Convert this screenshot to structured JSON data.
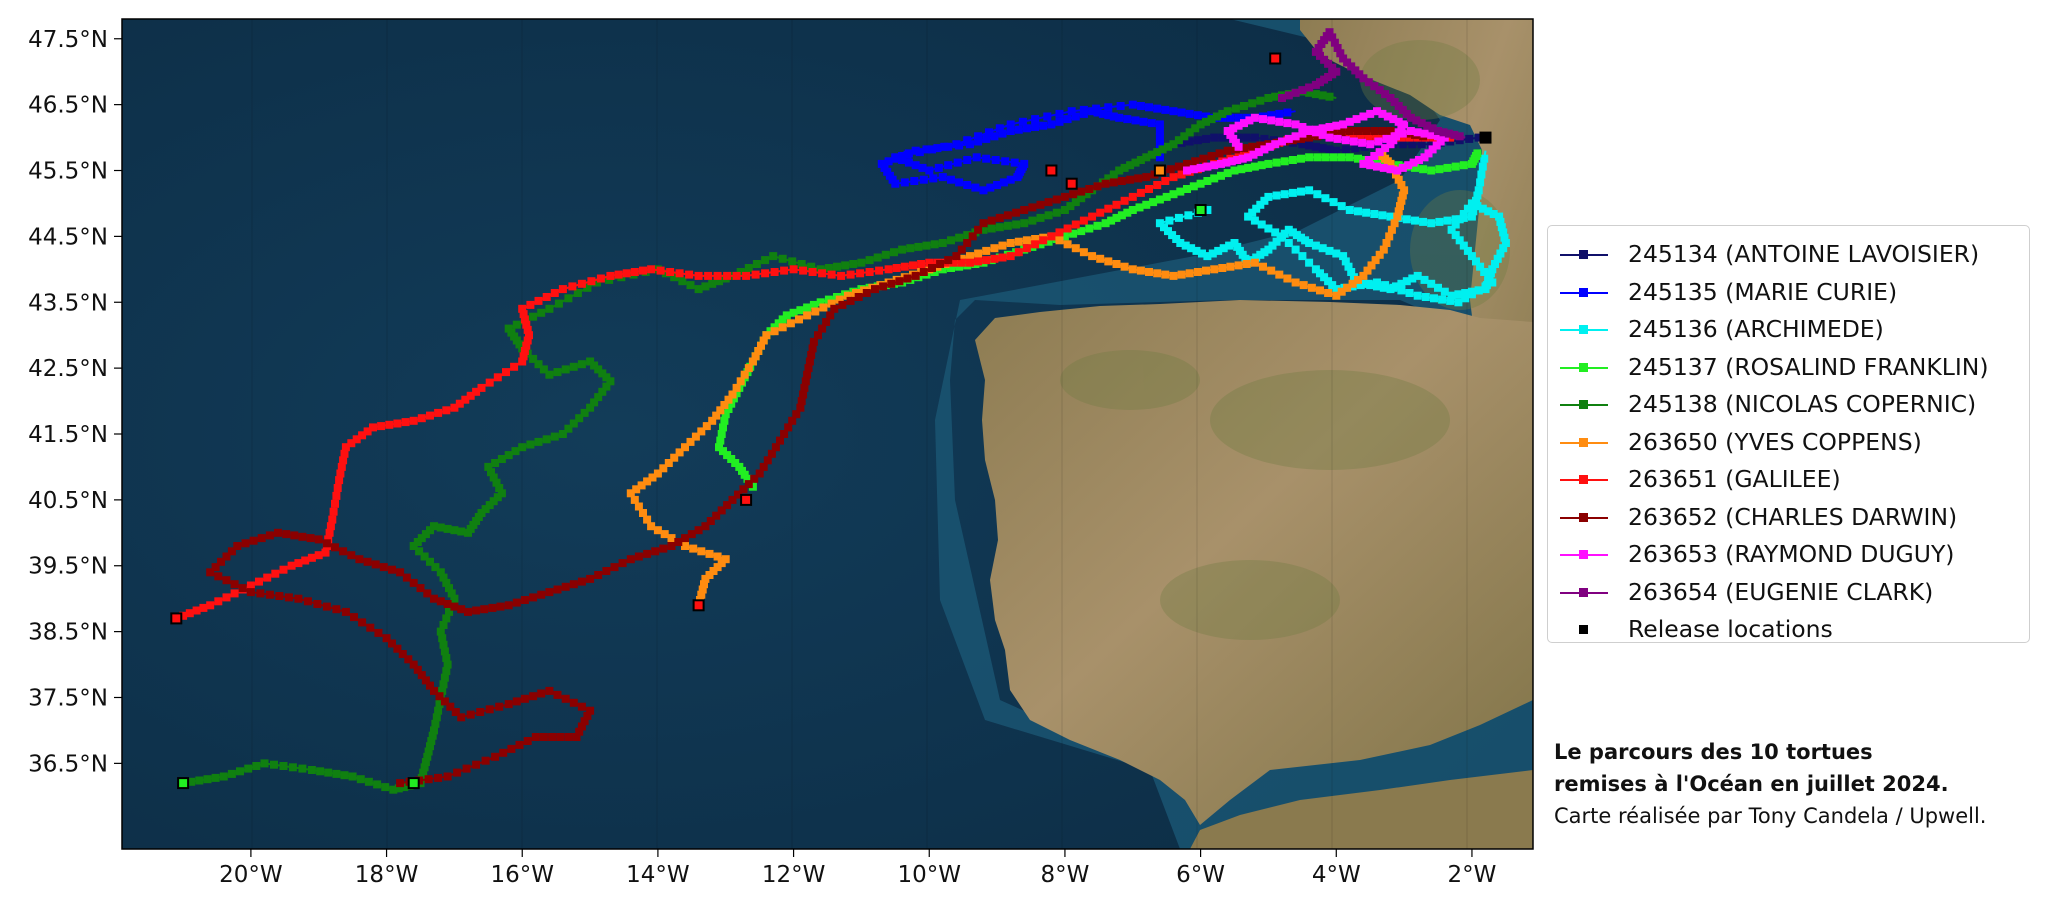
{
  "map": {
    "lon_range": [
      -21.9,
      -1.1
    ],
    "lat_range": [
      35.2,
      47.8
    ],
    "x_ticks": [
      "20°W",
      "18°W",
      "16°W",
      "14°W",
      "12°W",
      "10°W",
      "8°W",
      "6°W",
      "4°W",
      "2°W"
    ],
    "y_ticks": [
      "47.5°N",
      "46.5°N",
      "45.5°N",
      "44.5°N",
      "43.5°N",
      "42.5°N",
      "41.5°N",
      "40.5°N",
      "39.5°N",
      "38.5°N",
      "37.5°N",
      "36.5°N"
    ],
    "colors": {
      "ocean": "#0f3550",
      "shelf": "#1b5a74",
      "land": "#a08a5a",
      "land_green": "#6d7a44"
    }
  },
  "legend": [
    {
      "label": "245134 (ANTOINE LAVOISIER)",
      "color": "#10106a"
    },
    {
      "label": "245135 (MARIE CURIE)",
      "color": "#0000ff"
    },
    {
      "label": "245136 (ARCHIMEDE)",
      "color": "#00f0f0"
    },
    {
      "label": "245137 (ROSALIND FRANKLIN)",
      "color": "#22ee22"
    },
    {
      "label": "245138 (NICOLAS COPERNIC)",
      "color": "#108010"
    },
    {
      "label": "263650 (YVES COPPENS)",
      "color": "#ff8c10"
    },
    {
      "label": "263651 (GALILEE)",
      "color": "#ff1010"
    },
    {
      "label": "263652 (CHARLES DARWIN)",
      "color": "#8b0000"
    },
    {
      "label": "263653 (RAYMOND DUGUY)",
      "color": "#ff10ff"
    },
    {
      "label": "263654 (EUGENIE CLARK)",
      "color": "#800080"
    },
    {
      "label": "Release locations",
      "color": "#000000",
      "marker_only": true
    }
  ],
  "caption": {
    "line1": "Le parcours des 10 tortues",
    "line2": "remises à l'Océan en juillet 2024.",
    "line3": "Carte réalisée par Tony Candela / Upwell."
  },
  "release_points": [
    {
      "lon": -21.1,
      "lat": 38.7,
      "fill": "#ff1010"
    },
    {
      "lon": -21.0,
      "lat": 36.2,
      "fill": "#22ee22"
    },
    {
      "lon": -17.6,
      "lat": 36.2,
      "fill": "#22ee22"
    },
    {
      "lon": -13.4,
      "lat": 38.9,
      "fill": "#ff1010"
    },
    {
      "lon": -12.7,
      "lat": 40.5,
      "fill": "#ff1010"
    },
    {
      "lon": -8.2,
      "lat": 45.5,
      "fill": "#ff1010"
    },
    {
      "lon": -7.9,
      "lat": 45.3,
      "fill": "#ff1010"
    },
    {
      "lon": -6.6,
      "lat": 45.5,
      "fill": "#ff8c10"
    },
    {
      "lon": -6.0,
      "lat": 44.9,
      "fill": "#22ee22"
    },
    {
      "lon": -4.9,
      "lat": 47.2,
      "fill": "#ff1010"
    },
    {
      "lon": -1.8,
      "lat": 46.0,
      "fill": "#000000"
    }
  ],
  "tracks": [
    {
      "id": "245134",
      "color": "#10106a",
      "points": [
        [
          -1.9,
          46.0
        ],
        [
          -2.6,
          45.9
        ],
        [
          -3.3,
          45.9
        ],
        [
          -4.0,
          45.8
        ],
        [
          -4.5,
          45.9
        ],
        [
          -5.2,
          46.0
        ],
        [
          -5.8,
          46.0
        ],
        [
          -6.4,
          45.9
        ]
      ]
    },
    {
      "id": "245135",
      "color": "#0000ff",
      "points": [
        [
          -6.6,
          45.7
        ],
        [
          -6.6,
          46.2
        ],
        [
          -7.2,
          46.3
        ],
        [
          -7.6,
          46.4
        ],
        [
          -8.2,
          46.2
        ],
        [
          -8.8,
          46.1
        ],
        [
          -9.4,
          45.9
        ],
        [
          -10.2,
          45.8
        ],
        [
          -10.7,
          45.6
        ],
        [
          -10.5,
          45.3
        ],
        [
          -9.8,
          45.4
        ],
        [
          -9.2,
          45.2
        ],
        [
          -8.7,
          45.4
        ],
        [
          -8.6,
          45.6
        ],
        [
          -9.3,
          45.7
        ],
        [
          -10.0,
          45.5
        ],
        [
          -10.5,
          45.7
        ],
        [
          -9.6,
          45.9
        ],
        [
          -8.8,
          46.2
        ],
        [
          -7.9,
          46.4
        ],
        [
          -7.0,
          46.5
        ],
        [
          -6.4,
          46.4
        ],
        [
          -5.8,
          46.3
        ],
        [
          -5.2,
          46.3
        ],
        [
          -4.6,
          46.4
        ]
      ]
    },
    {
      "id": "245136",
      "color": "#00f0f0",
      "points": [
        [
          -5.9,
          44.9
        ],
        [
          -6.6,
          44.7
        ],
        [
          -6.3,
          44.4
        ],
        [
          -5.9,
          44.2
        ],
        [
          -5.5,
          44.4
        ],
        [
          -5.3,
          44.1
        ],
        [
          -5.0,
          44.3
        ],
        [
          -4.7,
          44.6
        ],
        [
          -4.4,
          44.4
        ],
        [
          -3.9,
          44.2
        ],
        [
          -3.7,
          43.8
        ],
        [
          -3.2,
          43.7
        ],
        [
          -2.8,
          43.9
        ],
        [
          -2.3,
          43.6
        ],
        [
          -1.8,
          43.7
        ],
        [
          -1.7,
          44.0
        ],
        [
          -1.5,
          44.4
        ],
        [
          -1.6,
          44.8
        ],
        [
          -2.0,
          45.0
        ],
        [
          -2.3,
          44.6
        ],
        [
          -2.0,
          44.2
        ],
        [
          -1.7,
          43.8
        ],
        [
          -2.2,
          43.5
        ],
        [
          -2.8,
          43.6
        ],
        [
          -3.4,
          43.8
        ],
        [
          -4.0,
          43.7
        ],
        [
          -4.3,
          44.0
        ],
        [
          -4.8,
          44.5
        ],
        [
          -5.3,
          44.8
        ],
        [
          -5.0,
          45.1
        ],
        [
          -4.4,
          45.2
        ],
        [
          -3.8,
          44.9
        ],
        [
          -3.2,
          44.8
        ],
        [
          -2.6,
          44.7
        ],
        [
          -2.0,
          44.8
        ],
        [
          -1.9,
          45.2
        ],
        [
          -1.8,
          45.8
        ]
      ]
    },
    {
      "id": "245137",
      "color": "#22ee22",
      "points": [
        [
          -12.6,
          40.7
        ],
        [
          -12.8,
          41.0
        ],
        [
          -13.1,
          41.3
        ],
        [
          -13.0,
          41.8
        ],
        [
          -12.8,
          42.2
        ],
        [
          -12.6,
          42.6
        ],
        [
          -12.4,
          43.0
        ],
        [
          -12.1,
          43.3
        ],
        [
          -11.6,
          43.5
        ],
        [
          -11.0,
          43.7
        ],
        [
          -10.4,
          43.8
        ],
        [
          -9.8,
          44.0
        ],
        [
          -9.2,
          44.1
        ],
        [
          -8.6,
          44.3
        ],
        [
          -8.0,
          44.5
        ],
        [
          -7.4,
          44.7
        ],
        [
          -7.0,
          44.9
        ],
        [
          -6.5,
          45.1
        ],
        [
          -6.0,
          45.3
        ],
        [
          -5.5,
          45.5
        ],
        [
          -5.0,
          45.6
        ],
        [
          -4.4,
          45.7
        ],
        [
          -3.8,
          45.7
        ],
        [
          -3.2,
          45.6
        ],
        [
          -2.6,
          45.5
        ],
        [
          -2.0,
          45.6
        ],
        [
          -1.9,
          45.8
        ]
      ]
    },
    {
      "id": "245138",
      "color": "#108010",
      "points": [
        [
          -21.0,
          36.2
        ],
        [
          -20.4,
          36.3
        ],
        [
          -19.8,
          36.5
        ],
        [
          -19.1,
          36.4
        ],
        [
          -18.5,
          36.3
        ],
        [
          -17.9,
          36.1
        ],
        [
          -17.5,
          36.2
        ],
        [
          -17.4,
          36.6
        ],
        [
          -17.3,
          37.0
        ],
        [
          -17.2,
          37.5
        ],
        [
          -17.1,
          38.0
        ],
        [
          -17.2,
          38.5
        ],
        [
          -17.0,
          39.0
        ],
        [
          -17.2,
          39.4
        ],
        [
          -17.6,
          39.8
        ],
        [
          -17.3,
          40.1
        ],
        [
          -16.8,
          40.0
        ],
        [
          -16.6,
          40.3
        ],
        [
          -16.3,
          40.6
        ],
        [
          -16.5,
          41.0
        ],
        [
          -16.0,
          41.3
        ],
        [
          -15.4,
          41.5
        ],
        [
          -15.0,
          41.9
        ],
        [
          -14.7,
          42.3
        ],
        [
          -15.0,
          42.6
        ],
        [
          -15.6,
          42.4
        ],
        [
          -16.0,
          42.8
        ],
        [
          -16.2,
          43.1
        ],
        [
          -15.6,
          43.4
        ],
        [
          -14.9,
          43.8
        ],
        [
          -14.0,
          44.0
        ],
        [
          -13.4,
          43.7
        ],
        [
          -12.9,
          43.9
        ],
        [
          -12.3,
          44.2
        ],
        [
          -11.6,
          44.0
        ],
        [
          -11.0,
          44.1
        ],
        [
          -10.4,
          44.3
        ],
        [
          -9.8,
          44.4
        ],
        [
          -9.2,
          44.6
        ],
        [
          -8.6,
          44.7
        ],
        [
          -8.0,
          44.9
        ],
        [
          -7.6,
          45.2
        ],
        [
          -7.2,
          45.5
        ],
        [
          -6.8,
          45.7
        ],
        [
          -6.4,
          45.9
        ],
        [
          -6.0,
          46.2
        ],
        [
          -5.6,
          46.4
        ],
        [
          -5.0,
          46.6
        ],
        [
          -4.5,
          46.7
        ],
        [
          -4.0,
          46.6
        ]
      ]
    },
    {
      "id": "263650",
      "color": "#ff8c10",
      "points": [
        [
          -13.4,
          38.9
        ],
        [
          -13.3,
          39.3
        ],
        [
          -13.0,
          39.6
        ],
        [
          -13.6,
          39.8
        ],
        [
          -14.1,
          40.1
        ],
        [
          -14.4,
          40.6
        ],
        [
          -14.0,
          40.9
        ],
        [
          -13.6,
          41.3
        ],
        [
          -13.2,
          41.7
        ],
        [
          -12.9,
          42.1
        ],
        [
          -12.6,
          42.6
        ],
        [
          -12.4,
          43.0
        ],
        [
          -11.8,
          43.3
        ],
        [
          -11.2,
          43.6
        ],
        [
          -10.6,
          43.8
        ],
        [
          -10.0,
          44.0
        ],
        [
          -9.4,
          44.2
        ],
        [
          -8.8,
          44.4
        ],
        [
          -8.2,
          44.5
        ],
        [
          -7.6,
          44.2
        ],
        [
          -7.0,
          44.0
        ],
        [
          -6.4,
          43.9
        ],
        [
          -5.8,
          44.0
        ],
        [
          -5.2,
          44.1
        ],
        [
          -4.6,
          43.8
        ],
        [
          -4.0,
          43.6
        ],
        [
          -3.6,
          43.9
        ],
        [
          -3.3,
          44.3
        ],
        [
          -3.1,
          44.8
        ],
        [
          -3.0,
          45.2
        ],
        [
          -3.2,
          45.6
        ],
        [
          -3.4,
          45.8
        ]
      ]
    },
    {
      "id": "263651",
      "color": "#ff1010",
      "points": [
        [
          -21.1,
          38.7
        ],
        [
          -20.6,
          38.9
        ],
        [
          -20.0,
          39.2
        ],
        [
          -19.4,
          39.5
        ],
        [
          -18.9,
          39.7
        ],
        [
          -18.8,
          40.2
        ],
        [
          -18.7,
          40.8
        ],
        [
          -18.6,
          41.3
        ],
        [
          -18.2,
          41.6
        ],
        [
          -17.6,
          41.7
        ],
        [
          -17.0,
          41.9
        ],
        [
          -16.6,
          42.2
        ],
        [
          -16.0,
          42.6
        ],
        [
          -15.9,
          43.0
        ],
        [
          -16.0,
          43.4
        ],
        [
          -15.4,
          43.7
        ],
        [
          -14.7,
          43.9
        ],
        [
          -14.1,
          44.0
        ],
        [
          -13.4,
          43.9
        ],
        [
          -12.7,
          43.9
        ],
        [
          -12.0,
          44.0
        ],
        [
          -11.3,
          43.9
        ],
        [
          -10.6,
          44.0
        ],
        [
          -10.0,
          44.1
        ],
        [
          -9.4,
          44.1
        ],
        [
          -8.8,
          44.2
        ],
        [
          -8.2,
          44.5
        ],
        [
          -7.6,
          44.8
        ],
        [
          -7.0,
          45.1
        ],
        [
          -6.4,
          45.4
        ],
        [
          -5.8,
          45.6
        ],
        [
          -5.2,
          45.8
        ],
        [
          -4.6,
          46.0
        ],
        [
          -4.0,
          46.1
        ],
        [
          -3.4,
          46.0
        ],
        [
          -2.8,
          46.0
        ],
        [
          -2.2,
          46.0
        ]
      ]
    },
    {
      "id": "263652",
      "color": "#8b0000",
      "points": [
        [
          -17.8,
          36.2
        ],
        [
          -17.1,
          36.3
        ],
        [
          -16.4,
          36.6
        ],
        [
          -15.8,
          36.9
        ],
        [
          -15.2,
          36.9
        ],
        [
          -15.0,
          37.3
        ],
        [
          -15.6,
          37.6
        ],
        [
          -16.2,
          37.4
        ],
        [
          -16.9,
          37.2
        ],
        [
          -17.3,
          37.6
        ],
        [
          -17.6,
          38.0
        ],
        [
          -18.0,
          38.4
        ],
        [
          -18.6,
          38.8
        ],
        [
          -19.3,
          39.0
        ],
        [
          -20.0,
          39.1
        ],
        [
          -20.6,
          39.4
        ],
        [
          -20.2,
          39.8
        ],
        [
          -19.6,
          40.0
        ],
        [
          -19.0,
          39.9
        ],
        [
          -18.4,
          39.6
        ],
        [
          -17.8,
          39.4
        ],
        [
          -17.3,
          39.0
        ],
        [
          -16.8,
          38.8
        ],
        [
          -16.2,
          38.9
        ],
        [
          -15.6,
          39.1
        ],
        [
          -15.0,
          39.3
        ],
        [
          -14.4,
          39.6
        ],
        [
          -13.8,
          39.8
        ],
        [
          -13.3,
          40.1
        ],
        [
          -12.9,
          40.5
        ],
        [
          -12.5,
          40.9
        ],
        [
          -12.2,
          41.4
        ],
        [
          -11.9,
          41.9
        ],
        [
          -11.8,
          42.4
        ],
        [
          -11.7,
          42.9
        ],
        [
          -11.4,
          43.4
        ],
        [
          -10.8,
          43.7
        ],
        [
          -10.2,
          43.9
        ],
        [
          -9.6,
          44.2
        ],
        [
          -9.2,
          44.7
        ],
        [
          -8.6,
          44.9
        ],
        [
          -8.0,
          45.1
        ],
        [
          -7.4,
          45.3
        ],
        [
          -6.8,
          45.4
        ],
        [
          -6.2,
          45.6
        ],
        [
          -5.6,
          45.8
        ],
        [
          -5.0,
          45.9
        ],
        [
          -4.4,
          46.0
        ],
        [
          -3.8,
          46.1
        ],
        [
          -3.2,
          46.1
        ],
        [
          -2.6,
          46.0
        ]
      ]
    },
    {
      "id": "263653",
      "color": "#ff10ff",
      "points": [
        [
          -6.2,
          45.5
        ],
        [
          -5.7,
          45.6
        ],
        [
          -5.3,
          45.7
        ],
        [
          -4.9,
          45.9
        ],
        [
          -4.4,
          46.1
        ],
        [
          -3.9,
          46.2
        ],
        [
          -3.4,
          46.4
        ],
        [
          -3.0,
          46.2
        ],
        [
          -3.2,
          45.9
        ],
        [
          -3.6,
          45.6
        ],
        [
          -3.1,
          45.5
        ],
        [
          -2.7,
          45.7
        ],
        [
          -2.4,
          46.0
        ],
        [
          -2.9,
          46.1
        ],
        [
          -3.5,
          45.9
        ],
        [
          -4.1,
          46.0
        ],
        [
          -4.6,
          46.2
        ],
        [
          -5.2,
          46.3
        ],
        [
          -5.6,
          46.1
        ],
        [
          -5.4,
          45.8
        ]
      ]
    },
    {
      "id": "263654",
      "color": "#800080",
      "points": [
        [
          -4.8,
          46.6
        ],
        [
          -4.3,
          46.8
        ],
        [
          -4.0,
          47.0
        ],
        [
          -4.3,
          47.3
        ],
        [
          -4.1,
          47.6
        ],
        [
          -3.9,
          47.2
        ],
        [
          -3.6,
          46.9
        ],
        [
          -3.2,
          46.6
        ],
        [
          -2.9,
          46.3
        ],
        [
          -2.5,
          46.1
        ],
        [
          -2.1,
          46.0
        ]
      ]
    }
  ]
}
